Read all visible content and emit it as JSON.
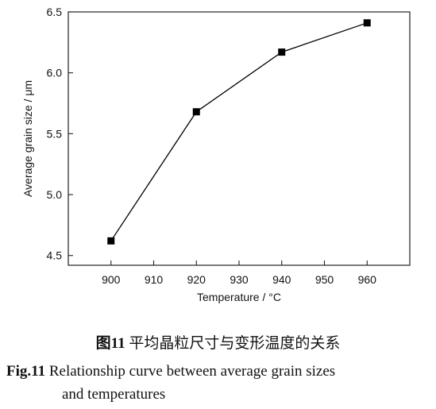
{
  "chart_data": {
    "type": "line",
    "x": [
      900,
      920,
      940,
      960
    ],
    "series": [
      {
        "values": [
          4.62,
          5.68,
          6.17,
          6.41
        ]
      }
    ],
    "xlabel": "Temperature / °C",
    "ylabel": "Average grain size / μm",
    "xlim": [
      890,
      970
    ],
    "ylim": [
      4.42,
      6.5
    ],
    "xticks": [
      "900",
      "910",
      "920",
      "930",
      "940",
      "950",
      "960"
    ],
    "yticks": [
      "4.5",
      "5.0",
      "5.5",
      "6.0",
      "6.5"
    ],
    "grid": false,
    "marker": "square",
    "color": "#000000"
  },
  "caption": {
    "cn_label": "图11",
    "cn_text": " 平均晶粒尺寸与变形温度的关系",
    "en_label": "Fig.11",
    "en_text_line1": " Relationship curve between average grain sizes",
    "en_text_line2": "and temperatures"
  }
}
